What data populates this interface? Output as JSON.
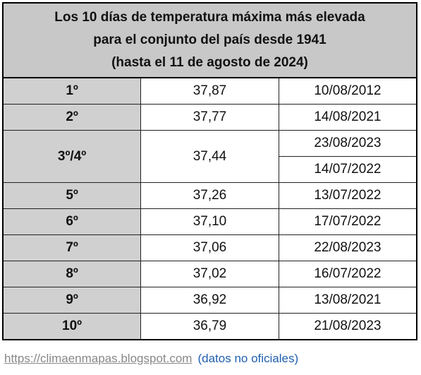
{
  "header": {
    "title": [
      "Los 10 días de temperatura máxima más elevada",
      "para el conjunto del país desde 1941",
      "(hasta el 11 de agosto de 2024)"
    ]
  },
  "table": {
    "rows": [
      {
        "rank": "1º",
        "temp": "37,87",
        "dates": [
          "10/08/2012"
        ]
      },
      {
        "rank": "2º",
        "temp": "37,77",
        "dates": [
          "14/08/2021"
        ]
      },
      {
        "rank": "3º/4º",
        "temp": "37,44",
        "dates": [
          "23/08/2023",
          "14/07/2022"
        ]
      },
      {
        "rank": "5º",
        "temp": "37,26",
        "dates": [
          "13/07/2022"
        ]
      },
      {
        "rank": "6º",
        "temp": "37,10",
        "dates": [
          "17/07/2022"
        ]
      },
      {
        "rank": "7º",
        "temp": "37,06",
        "dates": [
          "22/08/2023"
        ]
      },
      {
        "rank": "8º",
        "temp": "37,02",
        "dates": [
          "16/07/2022"
        ]
      },
      {
        "rank": "9º",
        "temp": "36,92",
        "dates": [
          "13/08/2021"
        ]
      },
      {
        "rank": "10º",
        "temp": "36,79",
        "dates": [
          "21/08/2023"
        ]
      }
    ]
  },
  "footer": {
    "url": "https://climaenmapas.blogspot.com",
    "note": "(datos no oficiales)"
  }
}
